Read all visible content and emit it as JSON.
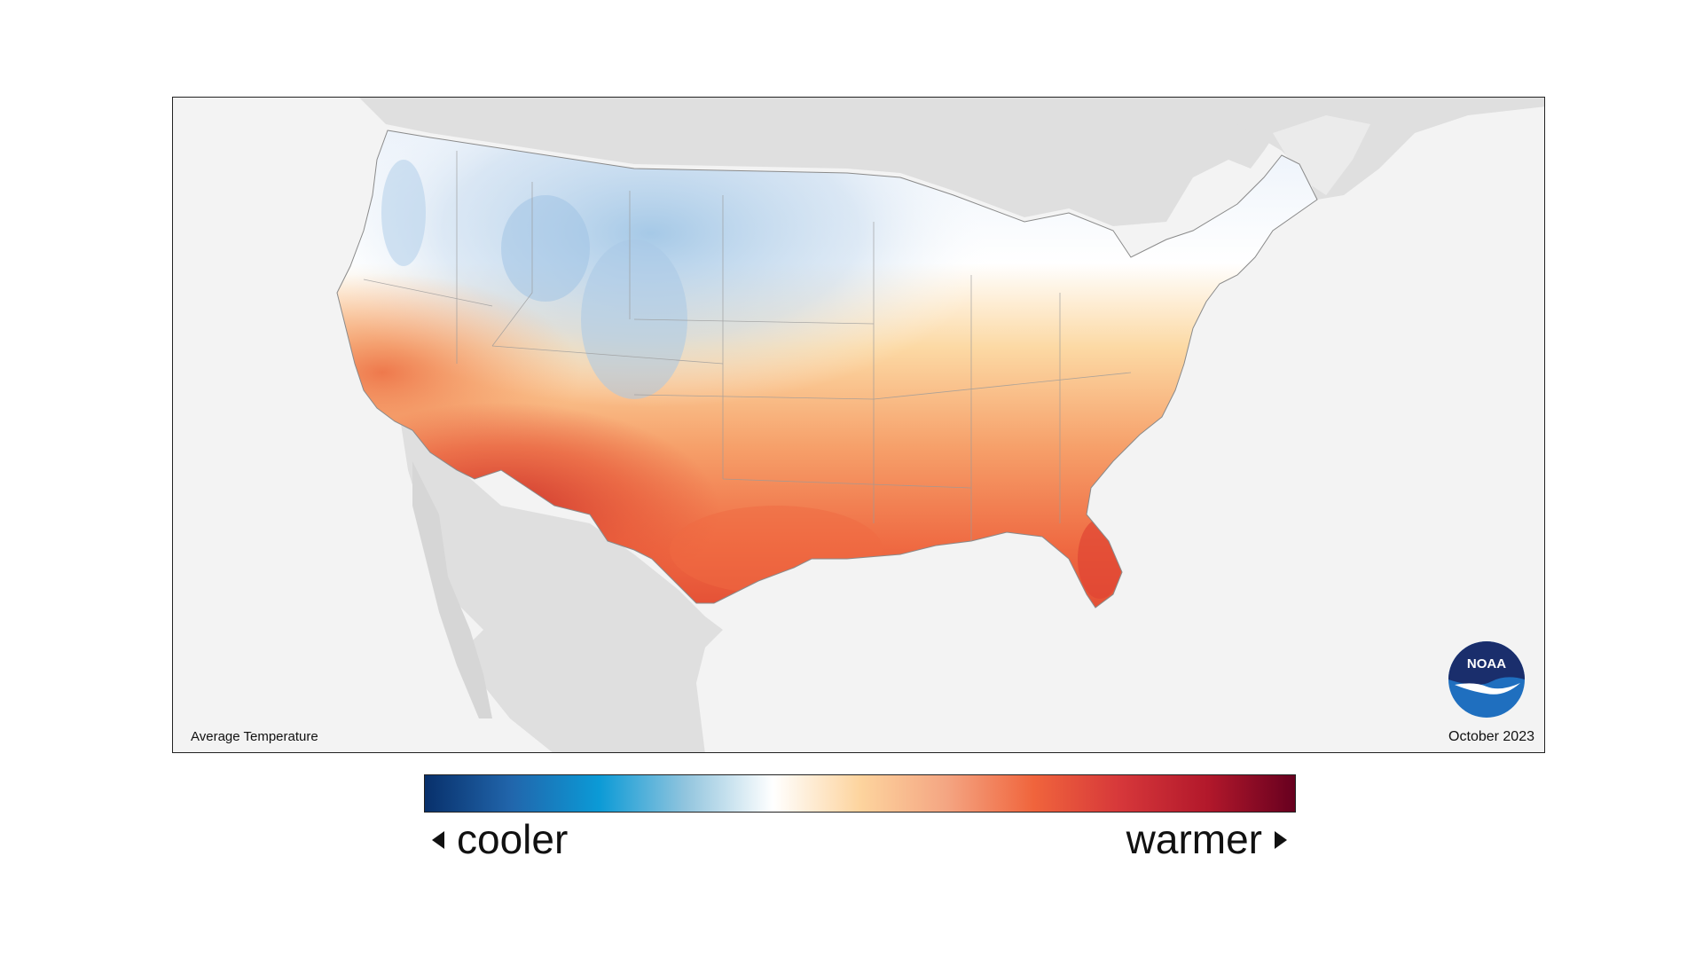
{
  "map": {
    "title": "Average Temperature",
    "date": "October 2023",
    "logo_text": "NOAA",
    "land_color": "#dfdfdf",
    "ocean_color": "#f3f3f3"
  },
  "legend": {
    "cooler_label": "cooler",
    "warmer_label": "warmer",
    "gradient_colors": [
      "#08306b",
      "#2166ac",
      "#0b9ad6",
      "#92c5de",
      "#ffffff",
      "#fdd49e",
      "#f4a582",
      "#f0643c",
      "#d6373a",
      "#b2182b",
      "#67001f"
    ]
  },
  "icons": {
    "logo": "noaa-logo",
    "left_arrow": "triangle-left-icon",
    "right_arrow": "triangle-right-icon"
  }
}
